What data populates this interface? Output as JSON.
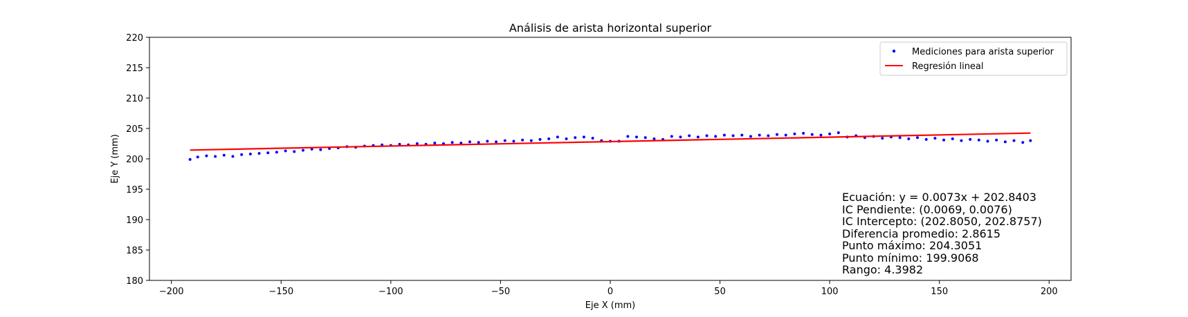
{
  "chart_data": {
    "type": "scatter",
    "title": "Análisis de arista horizontal superior",
    "xlabel": "Eje X (mm)",
    "ylabel": "Eje Y (mm)",
    "xlim": [
      -210,
      210
    ],
    "ylim": [
      180,
      220
    ],
    "xticks": [
      -200,
      -150,
      -100,
      -50,
      0,
      50,
      100,
      150,
      200
    ],
    "xtick_labels": [
      "−200",
      "−150",
      "−100",
      "−50",
      "0",
      "50",
      "100",
      "150",
      "200"
    ],
    "yticks": [
      180,
      185,
      190,
      195,
      200,
      205,
      210,
      215,
      220
    ],
    "ytick_labels": [
      "180",
      "185",
      "190",
      "195",
      "200",
      "205",
      "210",
      "215",
      "220"
    ],
    "grid": false,
    "legend_position": "top-right",
    "series": [
      {
        "name": "Mediciones para arista superior",
        "kind": "scatter",
        "color": "#0000ff",
        "points": [
          [
            -191.5,
            199.9
          ],
          [
            -188,
            200.3
          ],
          [
            -184,
            200.5
          ],
          [
            -180,
            200.4
          ],
          [
            -176,
            200.6
          ],
          [
            -172,
            200.4
          ],
          [
            -168,
            200.7
          ],
          [
            -164,
            200.8
          ],
          [
            -160,
            200.9
          ],
          [
            -156,
            201.0
          ],
          [
            -152,
            201.1
          ],
          [
            -148,
            201.3
          ],
          [
            -144,
            201.2
          ],
          [
            -140,
            201.4
          ],
          [
            -136,
            201.6
          ],
          [
            -132,
            201.5
          ],
          [
            -128,
            201.7
          ],
          [
            -124,
            201.8
          ],
          [
            -120,
            202.0
          ],
          [
            -116,
            201.9
          ],
          [
            -112,
            202.1
          ],
          [
            -108,
            202.2
          ],
          [
            -104,
            202.3
          ],
          [
            -100,
            202.2
          ],
          [
            -96,
            202.4
          ],
          [
            -92,
            202.3
          ],
          [
            -88,
            202.5
          ],
          [
            -84,
            202.4
          ],
          [
            -80,
            202.6
          ],
          [
            -76,
            202.5
          ],
          [
            -72,
            202.7
          ],
          [
            -68,
            202.6
          ],
          [
            -64,
            202.8
          ],
          [
            -60,
            202.7
          ],
          [
            -56,
            202.9
          ],
          [
            -52,
            202.8
          ],
          [
            -48,
            203.0
          ],
          [
            -44,
            202.9
          ],
          [
            -40,
            203.1
          ],
          [
            -36,
            203.0
          ],
          [
            -32,
            203.2
          ],
          [
            -28,
            203.3
          ],
          [
            -24,
            203.6
          ],
          [
            -20,
            203.3
          ],
          [
            -16,
            203.5
          ],
          [
            -12,
            203.6
          ],
          [
            -8,
            203.4
          ],
          [
            -4,
            203.0
          ],
          [
            0,
            202.9
          ],
          [
            4,
            202.9
          ],
          [
            8,
            203.7
          ],
          [
            12,
            203.6
          ],
          [
            16,
            203.5
          ],
          [
            20,
            203.3
          ],
          [
            24,
            203.2
          ],
          [
            28,
            203.7
          ],
          [
            32,
            203.6
          ],
          [
            36,
            203.8
          ],
          [
            40,
            203.6
          ],
          [
            44,
            203.8
          ],
          [
            48,
            203.7
          ],
          [
            52,
            203.9
          ],
          [
            56,
            203.8
          ],
          [
            60,
            203.9
          ],
          [
            64,
            203.7
          ],
          [
            68,
            203.9
          ],
          [
            72,
            203.8
          ],
          [
            76,
            204.0
          ],
          [
            80,
            203.9
          ],
          [
            84,
            204.1
          ],
          [
            88,
            204.2
          ],
          [
            92,
            204.0
          ],
          [
            96,
            203.9
          ],
          [
            100,
            204.1
          ],
          [
            104,
            204.3
          ],
          [
            108,
            203.6
          ],
          [
            112,
            203.8
          ],
          [
            116,
            203.5
          ],
          [
            120,
            203.7
          ],
          [
            124,
            203.4
          ],
          [
            128,
            203.6
          ],
          [
            132,
            203.5
          ],
          [
            136,
            203.3
          ],
          [
            140,
            203.5
          ],
          [
            144,
            203.2
          ],
          [
            148,
            203.4
          ],
          [
            152,
            203.1
          ],
          [
            156,
            203.3
          ],
          [
            160,
            203.0
          ],
          [
            164,
            203.2
          ],
          [
            168,
            203.1
          ],
          [
            172,
            202.9
          ],
          [
            176,
            203.1
          ],
          [
            180,
            202.8
          ],
          [
            184,
            203.0
          ],
          [
            188,
            202.7
          ],
          [
            191.5,
            203.0
          ]
        ]
      },
      {
        "name": "Regresión lineal",
        "kind": "line",
        "color": "#ff0000",
        "slope": 0.0073,
        "intercept": 202.8403,
        "x_range": [
          -191.5,
          191.5
        ]
      }
    ],
    "annotation_lines": [
      "Ecuación: y = 0.0073x + 202.8403",
      "IC Pendiente: (0.0069, 0.0076)",
      "IC Intercepto: (202.8050, 202.8757)",
      "Diferencia promedio: 2.8615",
      "Punto máximo: 204.3051",
      "Punto mínimo: 199.9068",
      "Rango: 4.3982"
    ]
  }
}
